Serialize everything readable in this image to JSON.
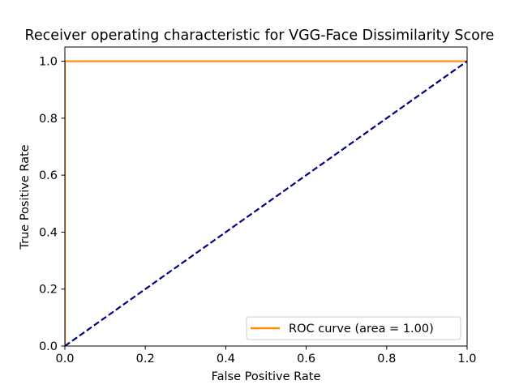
{
  "chart_data": {
    "type": "line",
    "title": "Receiver operating characteristic for VGG-Face Dissimilarity Score",
    "xlabel": "False Positive Rate",
    "ylabel": "True Positive Rate",
    "xlim": [
      0.0,
      1.0
    ],
    "ylim": [
      0.0,
      1.05
    ],
    "xticks": [
      "0.0",
      "0.2",
      "0.4",
      "0.6",
      "0.8",
      "1.0"
    ],
    "yticks": [
      "0.0",
      "0.2",
      "0.4",
      "0.6",
      "0.8",
      "1.0"
    ],
    "grid": false,
    "legend": {
      "position": "lower-right"
    },
    "series": [
      {
        "name": "ROC curve (area = 1.00)",
        "color": "#ff8c00",
        "style": "solid",
        "x": [
          0.0,
          0.0,
          1.0
        ],
        "y": [
          0.0,
          1.0,
          1.0
        ]
      },
      {
        "color": "#000080",
        "style": "dashed",
        "x": [
          0.0,
          1.0
        ],
        "y": [
          0.0,
          1.0
        ]
      }
    ]
  }
}
